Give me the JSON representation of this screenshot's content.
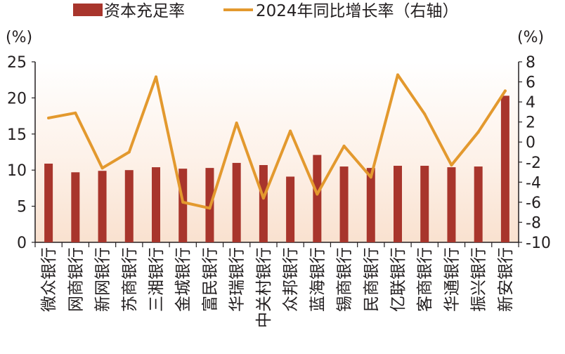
{
  "chart_data": {
    "type": "bar",
    "categories": [
      "微众银行",
      "网商银行",
      "新网银行",
      "苏商银行",
      "三湘银行",
      "金城银行",
      "富民银行",
      "华瑞银行",
      "中关村银行",
      "众邦银行",
      "蓝海银行",
      "锡商银行",
      "民商银行",
      "亿联银行",
      "客商银行",
      "华通银行",
      "振兴银行",
      "新安银行"
    ],
    "series": [
      {
        "name": "资本充足率",
        "type": "bar",
        "axis": "left",
        "color": "#a8352c",
        "values": [
          10.9,
          9.7,
          9.9,
          10.0,
          10.4,
          10.2,
          10.3,
          11.0,
          10.7,
          9.1,
          12.1,
          10.5,
          10.3,
          10.6,
          10.6,
          10.4,
          10.5,
          20.3
        ]
      },
      {
        "name": "2024年同比增长率（右轴）",
        "type": "line",
        "axis": "right",
        "color": "#e3992e",
        "values": [
          2.4,
          2.9,
          -2.6,
          -1.0,
          6.5,
          -6.0,
          -6.6,
          1.9,
          -5.6,
          1.1,
          -5.2,
          -0.4,
          -3.5,
          6.7,
          2.8,
          -2.3,
          1.0,
          5.1
        ]
      }
    ],
    "y_left": {
      "ticks": [
        "0",
        "5",
        "10",
        "15",
        "20",
        "25"
      ],
      "range": [
        0,
        25
      ],
      "unit": "(%)"
    },
    "y_right": {
      "ticks": [
        "8",
        "6",
        "4",
        "2",
        "0",
        "-2",
        "-4",
        "-6",
        "-8",
        "-10"
      ],
      "range": [
        -10,
        8
      ],
      "unit": "(%)"
    },
    "grid": false,
    "legend": "top"
  }
}
